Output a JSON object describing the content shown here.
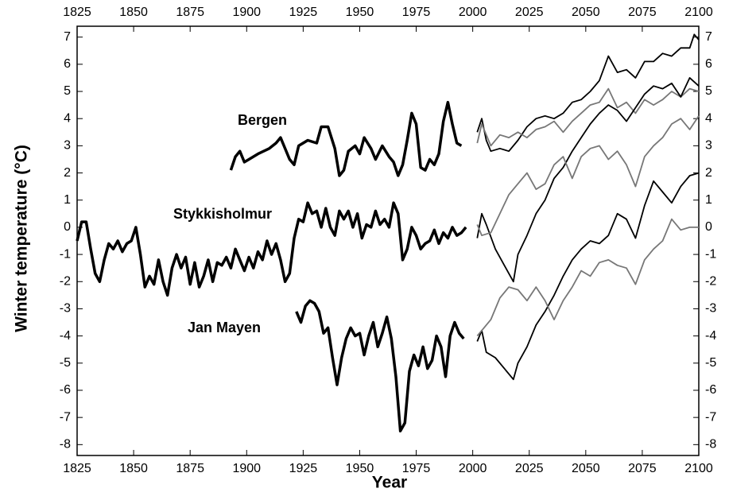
{
  "chart_data": {
    "type": "line",
    "x_label": "Year",
    "y_label": "Winter temperature (°C)",
    "xlim": [
      1825,
      2100
    ],
    "xticks": [
      1825,
      1850,
      1875,
      1900,
      1925,
      1950,
      1975,
      2000,
      2025,
      2050,
      2075,
      2100
    ],
    "ylim": [
      -8.4,
      7.4
    ],
    "yticks": [
      -8,
      -7,
      -6,
      -5,
      -4,
      -3,
      -2,
      -1,
      0,
      1,
      2,
      3,
      4,
      5,
      6,
      7
    ],
    "annotations": [
      "Bergen",
      "Stykkisholmur",
      "Jan Mayen"
    ],
    "series": [
      {
        "color": "#000000",
        "line_width": 3.5,
        "x": [
          1893,
          1895,
          1897,
          1899,
          1901,
          1905,
          1910,
          1913,
          1915,
          1919,
          1921,
          1923,
          1927,
          1931,
          1933,
          1936,
          1939,
          1941,
          1943,
          1945,
          1948,
          1950,
          1952,
          1955,
          1957,
          1960,
          1963,
          1965,
          1967,
          1969,
          1971,
          1973,
          1975,
          1977,
          1979,
          1981,
          1983,
          1985,
          1987,
          1989,
          1991,
          1993,
          1995
        ],
        "values": [
          2.1,
          2.6,
          2.8,
          2.4,
          2.5,
          2.7,
          2.9,
          3.1,
          3.3,
          2.5,
          2.3,
          3.0,
          3.2,
          3.1,
          3.7,
          3.7,
          2.9,
          1.9,
          2.1,
          2.8,
          3.0,
          2.7,
          3.3,
          2.9,
          2.5,
          3.0,
          2.6,
          2.4,
          1.9,
          2.3,
          3.2,
          4.2,
          3.8,
          2.2,
          2.1,
          2.5,
          2.3,
          2.7,
          3.9,
          4.6,
          3.8,
          3.1,
          3.0
        ]
      },
      {
        "color": "#000000",
        "line_width": 3.5,
        "x": [
          1825,
          1827,
          1829,
          1831,
          1833,
          1835,
          1837,
          1839,
          1841,
          1843,
          1845,
          1847,
          1849,
          1851,
          1853,
          1855,
          1857,
          1859,
          1861,
          1863,
          1865,
          1867,
          1869,
          1871,
          1873,
          1875,
          1877,
          1879,
          1881,
          1883,
          1885,
          1887,
          1889,
          1891,
          1893,
          1895,
          1897,
          1899,
          1901,
          1903,
          1905,
          1907,
          1909,
          1911,
          1913,
          1915,
          1917,
          1919,
          1921,
          1923,
          1925,
          1927,
          1929,
          1931,
          1933,
          1935,
          1937,
          1939,
          1941,
          1943,
          1945,
          1947,
          1949,
          1951,
          1953,
          1955,
          1957,
          1959,
          1961,
          1963,
          1965,
          1967,
          1969,
          1971,
          1973,
          1975,
          1977,
          1979,
          1981,
          1983,
          1985,
          1987,
          1989,
          1991,
          1993,
          1995,
          1997
        ],
        "values": [
          -0.5,
          0.2,
          0.2,
          -0.8,
          -1.7,
          -2.0,
          -1.2,
          -0.6,
          -0.8,
          -0.5,
          -0.9,
          -0.6,
          -0.5,
          0.0,
          -1.0,
          -2.2,
          -1.8,
          -2.1,
          -1.2,
          -2.0,
          -2.5,
          -1.5,
          -1.0,
          -1.5,
          -1.1,
          -2.1,
          -1.3,
          -2.2,
          -1.8,
          -1.2,
          -2.0,
          -1.3,
          -1.4,
          -1.1,
          -1.5,
          -0.8,
          -1.2,
          -1.6,
          -1.1,
          -1.5,
          -0.9,
          -1.2,
          -0.5,
          -1.0,
          -0.6,
          -1.2,
          -2.0,
          -1.7,
          -0.4,
          0.3,
          0.2,
          0.9,
          0.5,
          0.6,
          0.0,
          0.7,
          0.0,
          -0.3,
          0.6,
          0.3,
          0.6,
          0.0,
          0.5,
          -0.4,
          0.1,
          0.0,
          0.6,
          0.1,
          0.3,
          0.0,
          0.9,
          0.5,
          -1.2,
          -0.8,
          0.0,
          -0.3,
          -0.8,
          -0.6,
          -0.5,
          -0.1,
          -0.6,
          -0.2,
          -0.4,
          0.0,
          -0.3,
          -0.2,
          0.0
        ]
      },
      {
        "color": "#000000",
        "line_width": 3.5,
        "x": [
          1922,
          1924,
          1926,
          1928,
          1930,
          1932,
          1934,
          1936,
          1938,
          1940,
          1942,
          1944,
          1946,
          1948,
          1950,
          1952,
          1954,
          1956,
          1958,
          1960,
          1962,
          1964,
          1966,
          1968,
          1970,
          1972,
          1974,
          1976,
          1978,
          1980,
          1982,
          1984,
          1986,
          1988,
          1990,
          1992,
          1994,
          1996
        ],
        "values": [
          -3.1,
          -3.5,
          -2.9,
          -2.7,
          -2.8,
          -3.1,
          -3.9,
          -3.7,
          -4.8,
          -5.8,
          -4.8,
          -4.1,
          -3.7,
          -4.0,
          -3.9,
          -4.7,
          -4.0,
          -3.5,
          -4.4,
          -3.9,
          -3.3,
          -4.1,
          -5.5,
          -7.5,
          -7.2,
          -5.3,
          -4.7,
          -5.1,
          -4.4,
          -5.2,
          -4.9,
          -4.0,
          -4.4,
          -5.5,
          -4.0,
          -3.5,
          -3.9,
          -4.1
        ]
      },
      {
        "color": "#000000",
        "line_width": 1.8,
        "x": [
          2002,
          2004,
          2006,
          2008,
          2012,
          2016,
          2020,
          2024,
          2028,
          2032,
          2036,
          2040,
          2044,
          2048,
          2052,
          2056,
          2060,
          2064,
          2068,
          2072,
          2076,
          2080,
          2084,
          2088,
          2092,
          2096,
          2098,
          2100
        ],
        "values": [
          3.5,
          4.0,
          3.2,
          2.8,
          2.9,
          2.8,
          3.2,
          3.7,
          4.0,
          4.1,
          4.0,
          4.2,
          4.6,
          4.7,
          5.0,
          5.4,
          6.3,
          5.7,
          5.8,
          5.5,
          6.1,
          6.1,
          6.4,
          6.3,
          6.6,
          6.6,
          7.1,
          6.9
        ]
      },
      {
        "color": "#777777",
        "line_width": 1.8,
        "x": [
          2002,
          2004,
          2008,
          2012,
          2016,
          2020,
          2024,
          2028,
          2032,
          2036,
          2040,
          2044,
          2048,
          2052,
          2056,
          2060,
          2064,
          2068,
          2072,
          2076,
          2080,
          2084,
          2088,
          2092,
          2096,
          2100
        ],
        "values": [
          3.1,
          3.8,
          3.0,
          3.4,
          3.3,
          3.5,
          3.3,
          3.6,
          3.7,
          3.9,
          3.5,
          3.9,
          4.2,
          4.5,
          4.6,
          5.1,
          4.4,
          4.6,
          4.2,
          4.7,
          4.5,
          4.7,
          5.0,
          4.8,
          5.1,
          5.0
        ]
      },
      {
        "color": "#000000",
        "line_width": 1.8,
        "x": [
          2002,
          2004,
          2006,
          2010,
          2014,
          2018,
          2020,
          2024,
          2028,
          2032,
          2036,
          2040,
          2044,
          2048,
          2052,
          2056,
          2060,
          2064,
          2068,
          2072,
          2076,
          2080,
          2084,
          2088,
          2092,
          2096,
          2100
        ],
        "values": [
          -0.4,
          0.5,
          0.1,
          -0.8,
          -1.4,
          -2.0,
          -1.0,
          -0.3,
          0.5,
          1.0,
          1.8,
          2.2,
          2.8,
          3.3,
          3.8,
          4.2,
          4.5,
          4.3,
          3.9,
          4.4,
          4.9,
          5.2,
          5.1,
          5.3,
          4.8,
          5.5,
          5.2
        ]
      },
      {
        "color": "#777777",
        "line_width": 1.8,
        "x": [
          2002,
          2004,
          2008,
          2012,
          2016,
          2020,
          2024,
          2028,
          2032,
          2036,
          2040,
          2044,
          2048,
          2052,
          2056,
          2060,
          2064,
          2068,
          2072,
          2076,
          2080,
          2084,
          2088,
          2092,
          2096,
          2100
        ],
        "values": [
          0.1,
          -0.3,
          -0.2,
          0.5,
          1.2,
          1.6,
          2.0,
          1.4,
          1.6,
          2.3,
          2.6,
          1.8,
          2.6,
          2.9,
          3.0,
          2.5,
          2.8,
          2.3,
          1.5,
          2.6,
          3.0,
          3.3,
          3.8,
          4.0,
          3.6,
          4.1
        ]
      },
      {
        "color": "#000000",
        "line_width": 1.8,
        "x": [
          2002,
          2004,
          2006,
          2010,
          2014,
          2018,
          2020,
          2024,
          2028,
          2032,
          2036,
          2040,
          2044,
          2048,
          2052,
          2056,
          2060,
          2064,
          2068,
          2072,
          2076,
          2080,
          2084,
          2088,
          2092,
          2096,
          2100
        ],
        "values": [
          -4.2,
          -3.8,
          -4.6,
          -4.8,
          -5.2,
          -5.6,
          -5.0,
          -4.4,
          -3.6,
          -3.1,
          -2.5,
          -1.8,
          -1.2,
          -0.8,
          -0.5,
          -0.6,
          -0.3,
          0.5,
          0.3,
          -0.4,
          0.8,
          1.7,
          1.3,
          0.9,
          1.5,
          1.9,
          2.0
        ]
      },
      {
        "color": "#777777",
        "line_width": 1.8,
        "x": [
          2002,
          2004,
          2008,
          2012,
          2016,
          2020,
          2024,
          2028,
          2032,
          2036,
          2040,
          2044,
          2048,
          2052,
          2056,
          2060,
          2064,
          2068,
          2072,
          2076,
          2080,
          2084,
          2088,
          2092,
          2096,
          2100
        ],
        "values": [
          -4.0,
          -3.8,
          -3.4,
          -2.6,
          -2.2,
          -2.3,
          -2.7,
          -2.2,
          -2.7,
          -3.4,
          -2.7,
          -2.2,
          -1.6,
          -1.8,
          -1.3,
          -1.2,
          -1.4,
          -1.5,
          -2.1,
          -1.2,
          -0.8,
          -0.5,
          0.3,
          -0.1,
          0.0,
          0.0
        ]
      }
    ]
  }
}
